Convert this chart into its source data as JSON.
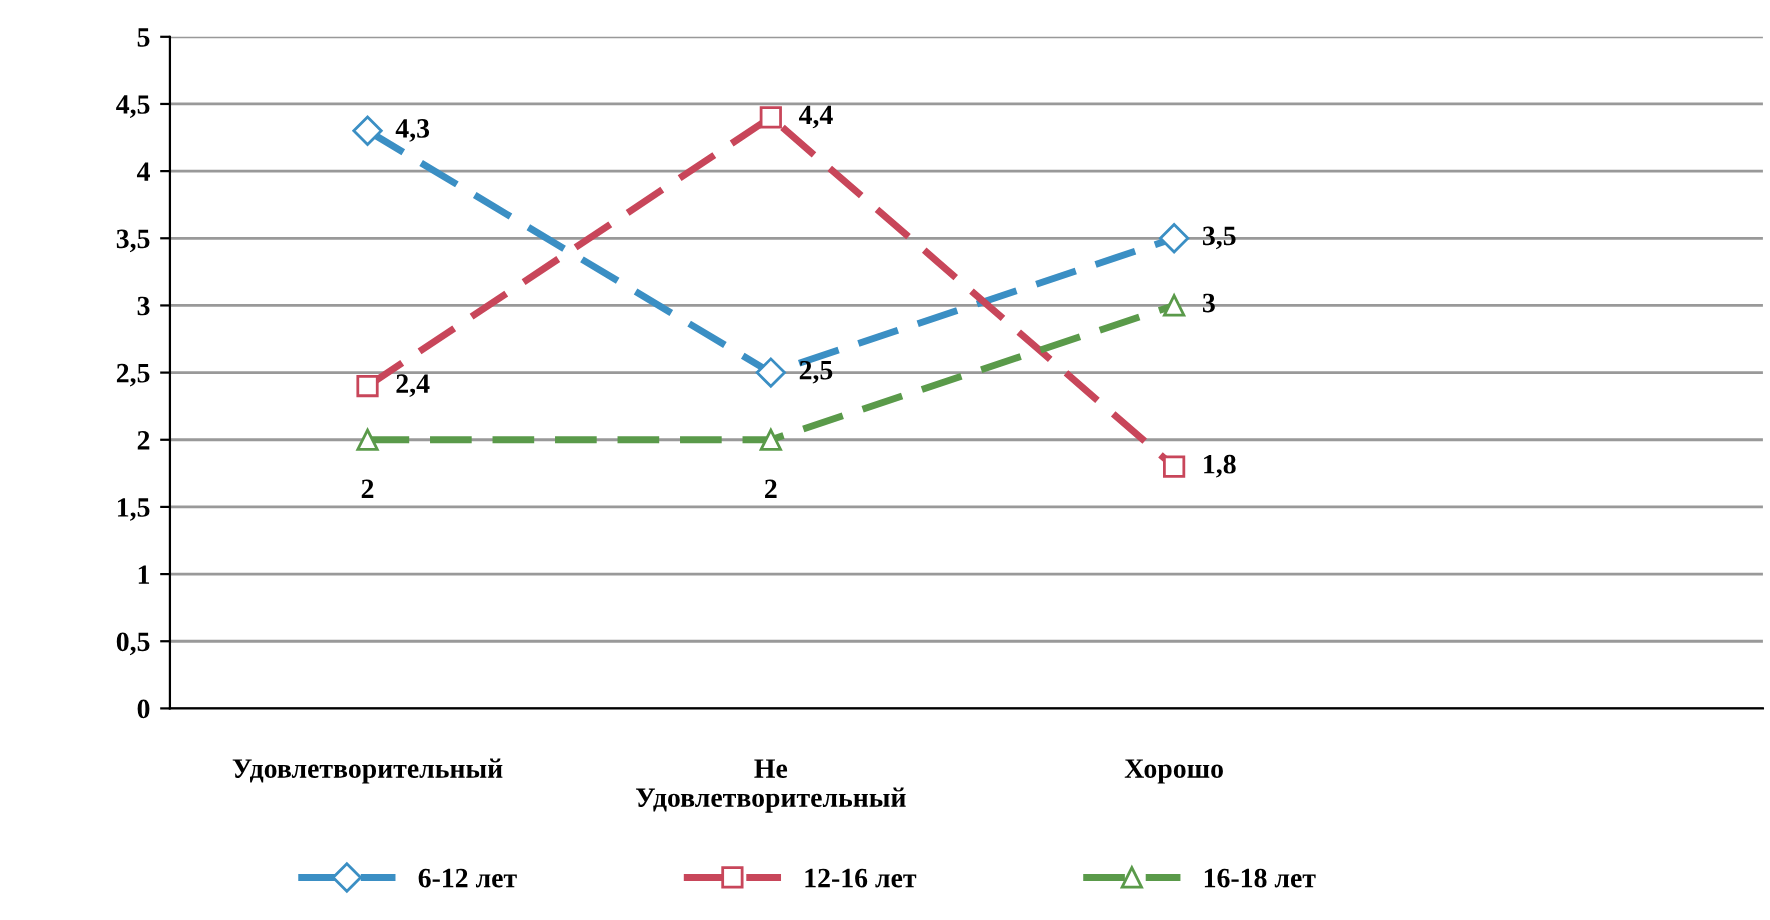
{
  "chart_data": {
    "type": "line",
    "categories": [
      "Удовлетворительный",
      "Не\nУдовлетворительный",
      "Хорошо"
    ],
    "series": [
      {
        "name": "6-12 лет",
        "color": "#3b8fc4",
        "marker": "diamond",
        "values": [
          4.3,
          2.5,
          3.5
        ],
        "value_labels": [
          "4,3",
          "2,5",
          "3,5"
        ]
      },
      {
        "name": "12-16 лет",
        "color": "#c8465a",
        "marker": "square",
        "values": [
          2.4,
          4.4,
          1.8
        ],
        "value_labels": [
          "2,4",
          "4,4",
          "1,8"
        ]
      },
      {
        "name": "16-18 лет",
        "color": "#5a9a4a",
        "marker": "triangle",
        "values": [
          2,
          2,
          3
        ],
        "value_labels": [
          "2",
          "2",
          "3"
        ]
      }
    ],
    "ylim": [
      0,
      5
    ],
    "yticks": [
      0,
      {
        "value": 0.5,
        "label": "0,5"
      },
      1,
      {
        "value": 1.5,
        "label": "1,5"
      },
      2,
      {
        "value": 2.5,
        "label": "2,5"
      },
      3,
      {
        "value": 3.5,
        "label": "3,5"
      },
      4,
      {
        "value": 4.5,
        "label": "4,5"
      },
      5
    ],
    "grid": "y",
    "legend": "bottom",
    "line_style": "dashed"
  }
}
